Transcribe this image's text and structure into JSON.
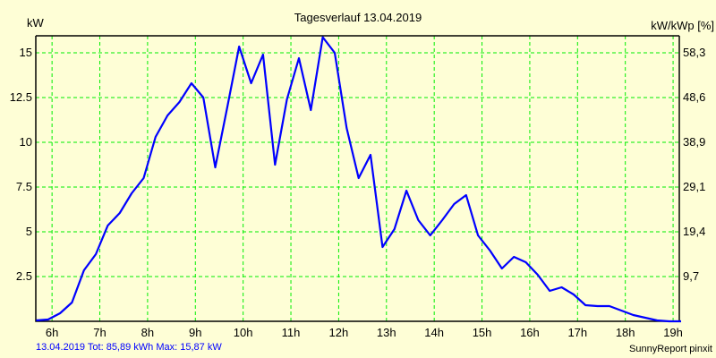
{
  "chart_data": {
    "type": "line",
    "title": "Tagesverlauf 13.04.2019",
    "ylabel": "kW",
    "ylabel_right": "kW/kWp [%]",
    "x_start_hour": 5.667,
    "x_step_hours": 0.25,
    "xlim": [
      5.66,
      19.13
    ],
    "ylim": [
      0,
      15.95
    ],
    "x_ticks": [
      {
        "value": 6,
        "label": "6h"
      },
      {
        "value": 7,
        "label": "7h"
      },
      {
        "value": 8,
        "label": "8h"
      },
      {
        "value": 9,
        "label": "9h"
      },
      {
        "value": 10,
        "label": "10h"
      },
      {
        "value": 11,
        "label": "11h"
      },
      {
        "value": 12,
        "label": "12h"
      },
      {
        "value": 13,
        "label": "13h"
      },
      {
        "value": 14,
        "label": "14h"
      },
      {
        "value": 15,
        "label": "15h"
      },
      {
        "value": 16,
        "label": "16h"
      },
      {
        "value": 17,
        "label": "17h"
      },
      {
        "value": 18,
        "label": "18h"
      },
      {
        "value": 19,
        "label": "19h"
      }
    ],
    "y_ticks": [
      {
        "value": 2.5,
        "label": "2.5",
        "right": "9,7"
      },
      {
        "value": 5,
        "label": "5",
        "right": "19,4"
      },
      {
        "value": 7.5,
        "label": "7.5",
        "right": "29,1"
      },
      {
        "value": 10,
        "label": "10",
        "right": "38,9"
      },
      {
        "value": 12.5,
        "label": "12.5",
        "right": "48,6"
      },
      {
        "value": 15,
        "label": "15",
        "right": "58,3"
      }
    ],
    "grid": true,
    "series": [
      {
        "name": "kW",
        "color": "#0000ff",
        "values": [
          0.05,
          0.1,
          0.45,
          1.05,
          2.85,
          3.75,
          5.35,
          6.05,
          7.15,
          8.0,
          10.3,
          11.5,
          12.25,
          13.3,
          12.5,
          8.6,
          11.95,
          15.35,
          13.3,
          14.9,
          8.75,
          12.4,
          14.7,
          11.8,
          15.87,
          15.0,
          10.8,
          8.0,
          9.3,
          4.15,
          5.15,
          7.3,
          5.65,
          4.8,
          5.65,
          6.55,
          7.05,
          4.8,
          3.95,
          2.95,
          3.6,
          3.3,
          2.6,
          1.7,
          1.9,
          1.5,
          0.9,
          0.85,
          0.85,
          0.6,
          0.35,
          0.2,
          0.05,
          0.0,
          0.0
        ]
      }
    ]
  },
  "footer": {
    "summary": "13.04.2019 Tot: 85,89 kWh Max: 15,87 kW",
    "brand": "SunnyReport pinxit"
  },
  "colors": {
    "background": "#fefed6",
    "grid": "#00ee00",
    "line": "#0000ff"
  }
}
